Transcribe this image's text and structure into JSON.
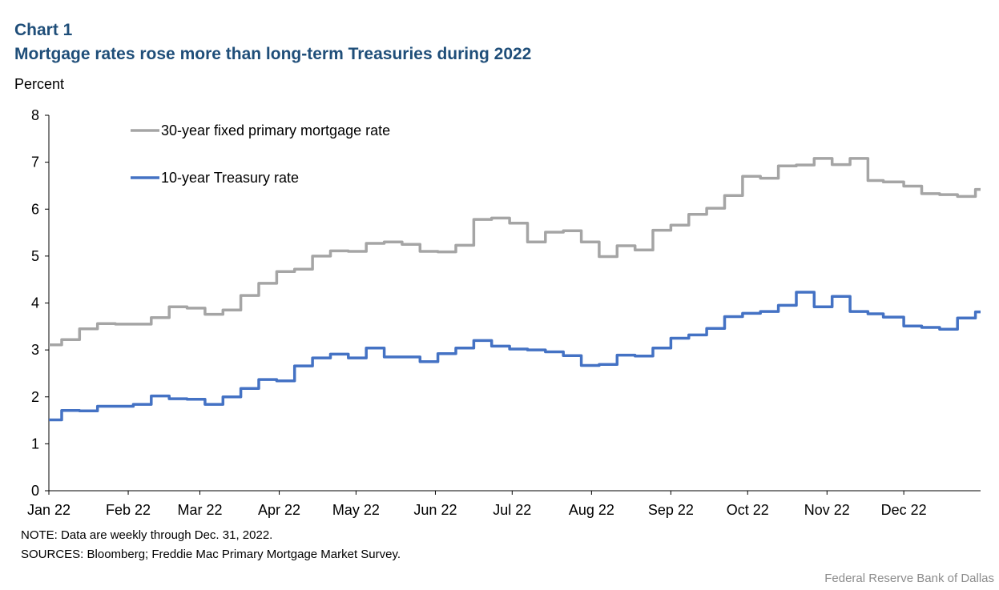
{
  "header": {
    "chart_number": "Chart 1",
    "title": "Mortgage rates rose more than long-term Treasuries during 2022",
    "y_unit": "Percent"
  },
  "footer": {
    "note": "NOTE: Data are weekly through Dec. 31, 2022.",
    "sources": "SOURCES: Bloomberg; Freddie Mac Primary Mortgage Market Survey.",
    "credit": "Federal Reserve Bank of Dallas"
  },
  "chart_data": {
    "type": "line",
    "x_axis": "weekly dates, 2022",
    "xlim": [
      "2022-01-01",
      "2022-12-31"
    ],
    "ylim": [
      0,
      8
    ],
    "yticks": [
      0,
      1,
      2,
      3,
      4,
      5,
      6,
      7,
      8
    ],
    "x_tick_labels": [
      "Jan 22",
      "Feb 22",
      "Mar 22",
      "Apr 22",
      "May 22",
      "Jun 22",
      "Jul 22",
      "Aug 22",
      "Sep 22",
      "Oct 22",
      "Nov 22",
      "Dec 22"
    ],
    "grid": false,
    "legend_position": "top-left, inside plot",
    "step_line": true,
    "series": [
      {
        "name": "30-year fixed primary mortgage rate",
        "color": "#A5A5A5",
        "x": [
          "2022-01-01",
          "2022-01-06",
          "2022-01-13",
          "2022-01-20",
          "2022-01-27",
          "2022-02-03",
          "2022-02-10",
          "2022-02-17",
          "2022-02-24",
          "2022-03-03",
          "2022-03-10",
          "2022-03-17",
          "2022-03-24",
          "2022-03-31",
          "2022-04-07",
          "2022-04-14",
          "2022-04-21",
          "2022-04-28",
          "2022-05-05",
          "2022-05-12",
          "2022-05-19",
          "2022-05-26",
          "2022-06-02",
          "2022-06-09",
          "2022-06-16",
          "2022-06-23",
          "2022-06-30",
          "2022-07-07",
          "2022-07-14",
          "2022-07-21",
          "2022-07-28",
          "2022-08-04",
          "2022-08-11",
          "2022-08-18",
          "2022-08-25",
          "2022-09-01",
          "2022-09-08",
          "2022-09-15",
          "2022-09-22",
          "2022-09-29",
          "2022-10-06",
          "2022-10-13",
          "2022-10-20",
          "2022-10-27",
          "2022-11-03",
          "2022-11-10",
          "2022-11-17",
          "2022-11-23",
          "2022-12-01",
          "2022-12-08",
          "2022-12-15",
          "2022-12-22",
          "2022-12-29",
          "2022-12-31"
        ],
        "values": [
          3.11,
          3.22,
          3.45,
          3.56,
          3.55,
          3.55,
          3.69,
          3.92,
          3.89,
          3.76,
          3.85,
          4.16,
          4.42,
          4.67,
          4.72,
          5.0,
          5.11,
          5.1,
          5.27,
          5.3,
          5.25,
          5.1,
          5.09,
          5.23,
          5.78,
          5.81,
          5.7,
          5.3,
          5.51,
          5.54,
          5.3,
          4.99,
          5.22,
          5.13,
          5.55,
          5.66,
          5.89,
          6.02,
          6.29,
          6.7,
          6.66,
          6.92,
          6.94,
          7.08,
          6.95,
          7.08,
          6.61,
          6.58,
          6.49,
          6.33,
          6.31,
          6.27,
          6.42,
          6.42
        ]
      },
      {
        "name": "10-year Treasury rate",
        "color": "#4472C4",
        "x": [
          "2022-01-01",
          "2022-01-06",
          "2022-01-13",
          "2022-01-20",
          "2022-01-27",
          "2022-02-03",
          "2022-02-10",
          "2022-02-17",
          "2022-02-24",
          "2022-03-03",
          "2022-03-10",
          "2022-03-17",
          "2022-03-24",
          "2022-03-31",
          "2022-04-07",
          "2022-04-14",
          "2022-04-21",
          "2022-04-28",
          "2022-05-05",
          "2022-05-12",
          "2022-05-19",
          "2022-05-26",
          "2022-06-02",
          "2022-06-09",
          "2022-06-16",
          "2022-06-23",
          "2022-06-30",
          "2022-07-07",
          "2022-07-14",
          "2022-07-21",
          "2022-07-28",
          "2022-08-04",
          "2022-08-11",
          "2022-08-18",
          "2022-08-25",
          "2022-09-01",
          "2022-09-08",
          "2022-09-15",
          "2022-09-22",
          "2022-09-29",
          "2022-10-06",
          "2022-10-13",
          "2022-10-20",
          "2022-10-27",
          "2022-11-03",
          "2022-11-10",
          "2022-11-17",
          "2022-11-23",
          "2022-12-01",
          "2022-12-08",
          "2022-12-15",
          "2022-12-22",
          "2022-12-29",
          "2022-12-31"
        ],
        "values": [
          1.51,
          1.71,
          1.7,
          1.8,
          1.8,
          1.84,
          2.02,
          1.96,
          1.95,
          1.84,
          2.0,
          2.18,
          2.37,
          2.34,
          2.66,
          2.83,
          2.91,
          2.83,
          3.04,
          2.85,
          2.85,
          2.75,
          2.92,
          3.04,
          3.2,
          3.08,
          3.02,
          3.0,
          2.96,
          2.88,
          2.67,
          2.69,
          2.89,
          2.87,
          3.04,
          3.25,
          3.32,
          3.46,
          3.71,
          3.78,
          3.82,
          3.95,
          4.23,
          3.92,
          4.14,
          3.82,
          3.77,
          3.7,
          3.51,
          3.48,
          3.44,
          3.68,
          3.81,
          3.81
        ]
      }
    ]
  }
}
